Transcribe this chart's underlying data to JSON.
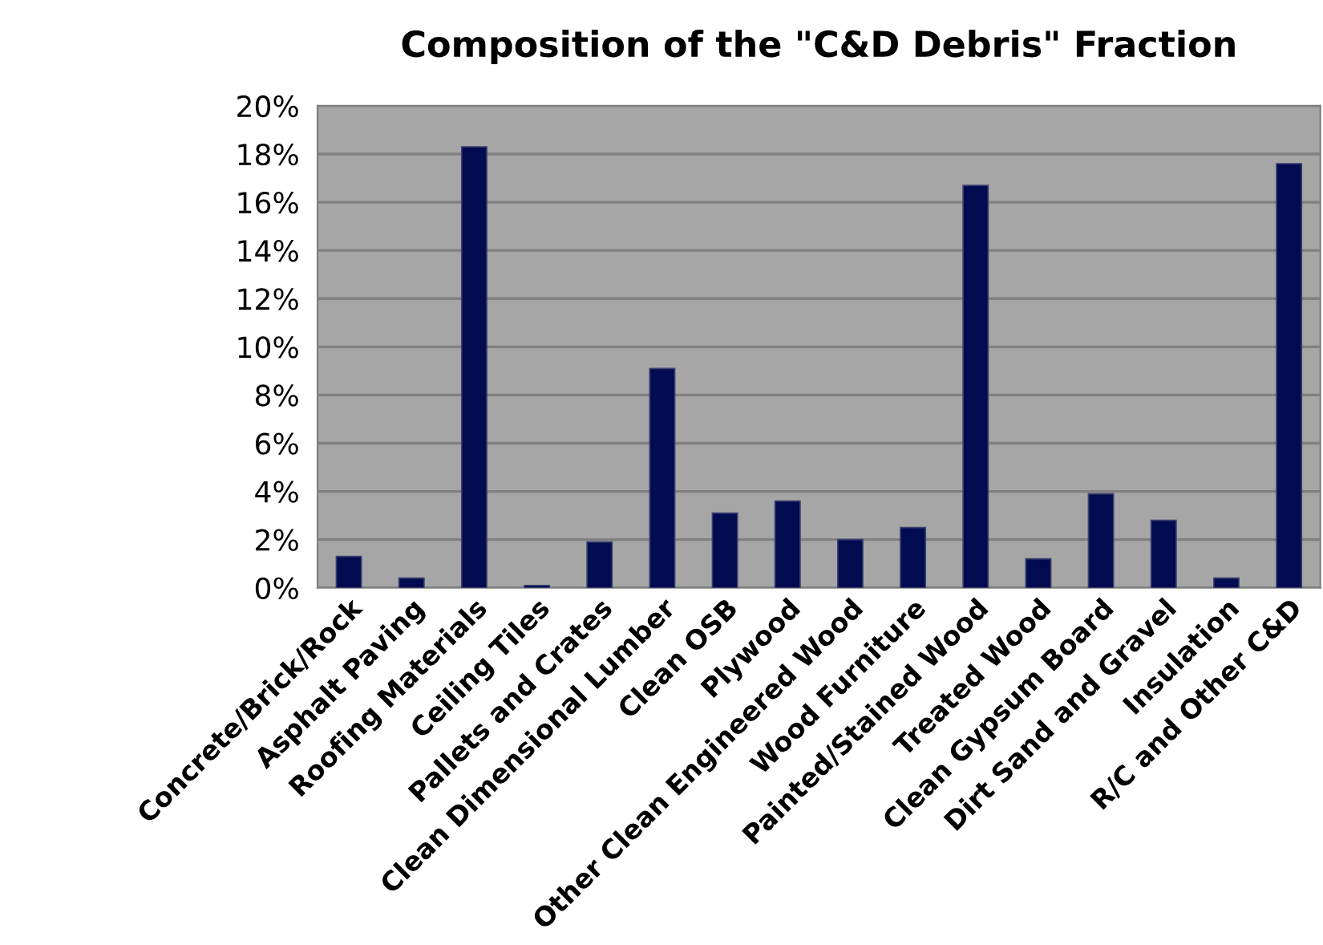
{
  "chart_data": {
    "type": "bar",
    "title": "Composition of the \"C&D Debris\" Fraction",
    "categories": [
      "Concrete/Brick/Rock",
      "Asphalt Paving",
      "Roofing Materials",
      "Ceiling Tiles",
      "Pallets and Crates",
      "Clean Dimensional Lumber",
      "Clean OSB",
      "Plywood",
      "Other Clean Engineered Wood",
      "Wood Furniture",
      "Painted/Stained Wood",
      "Treated Wood",
      "Clean Gypsum Board",
      "Dirt Sand and Gravel",
      "Insulation",
      "R/C and Other C&D"
    ],
    "values": [
      1.3,
      0.4,
      18.3,
      0.1,
      1.9,
      9.1,
      3.1,
      3.6,
      2.0,
      2.5,
      16.7,
      1.2,
      3.9,
      2.8,
      0.4,
      17.6
    ],
    "color": "#000b50",
    "ylim": [
      0,
      20
    ],
    "yticks": [
      {
        "value": 0,
        "label": "0%"
      },
      {
        "value": 2,
        "label": "2%"
      },
      {
        "value": 4,
        "label": "4%"
      },
      {
        "value": 6,
        "label": "6%"
      },
      {
        "value": 8,
        "label": "8%"
      },
      {
        "value": 10,
        "label": "10%"
      },
      {
        "value": 12,
        "label": "12%"
      },
      {
        "value": 14,
        "label": "14%"
      },
      {
        "value": 16,
        "label": "16%"
      },
      {
        "value": 18,
        "label": "18%"
      },
      {
        "value": 20,
        "label": "20%"
      }
    ],
    "grid": "y"
  }
}
